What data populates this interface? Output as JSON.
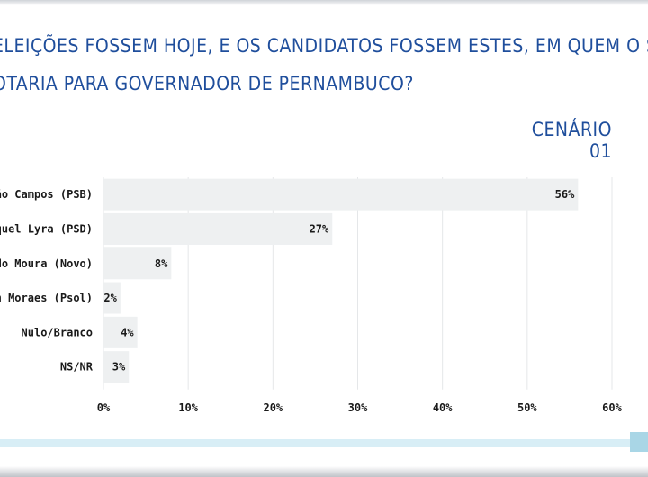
{
  "header": {
    "question_line1": "ELEIÇÕES FOSSEM HOJE, E OS CANDIDATOS FOSSEM ESTES, EM QUEM O SR.",
    "question_line2": "OTARIA PARA GOVERNADOR DE PERNAMBUCO?",
    "scenario": "CENÁRIO 01"
  },
  "colors": {
    "title": "#1f4e9c",
    "bar": "#eef0f1",
    "grid": "#e5e7e9",
    "accent_stripe": "#d8eef6"
  },
  "chart_data": {
    "type": "bar",
    "orientation": "horizontal",
    "title": "",
    "xlabel": "",
    "ylabel": "",
    "categories": [
      "João Campos (PSB)",
      "Raquel Lyra (PSD)",
      "ardo Moura (Novo)",
      "lvan Moraes (Psol)",
      "Nulo/Branco",
      "NS/NR"
    ],
    "values": [
      56,
      27,
      8,
      2,
      4,
      3
    ],
    "value_labels": [
      "56%",
      "27%",
      "8%",
      "2%",
      "4%",
      "3%"
    ],
    "xlim": [
      0,
      60
    ],
    "xticks": [
      0,
      10,
      20,
      30,
      40,
      50,
      60
    ],
    "xtick_labels": [
      "0%",
      "10%",
      "20%",
      "30%",
      "40%",
      "50%",
      "60%"
    ],
    "grid": true,
    "legend": "none"
  }
}
